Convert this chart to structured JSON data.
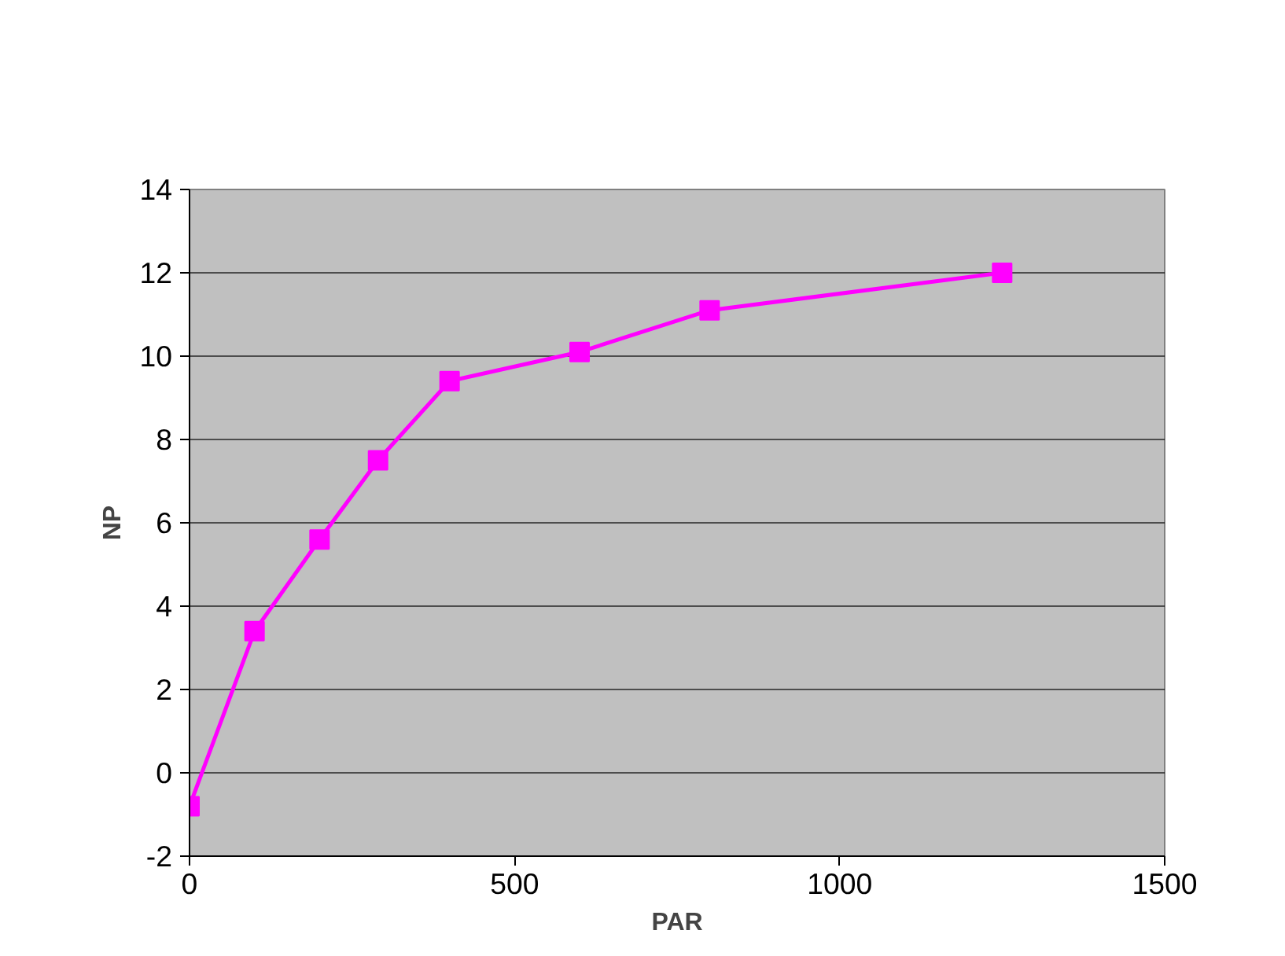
{
  "chart_data": {
    "type": "line",
    "xlabel": "PAR",
    "ylabel": "NP",
    "x": [
      0,
      100,
      200,
      290,
      400,
      600,
      800,
      1250
    ],
    "series": [
      {
        "color": "#ff00ff",
        "values": [
          -0.8,
          3.4,
          5.6,
          7.5,
          9.4,
          10.1,
          11.1,
          12.0
        ]
      }
    ],
    "xlim": [
      0,
      1500
    ],
    "xticks": [
      0,
      500,
      1000,
      1500
    ],
    "ylim": [
      -2,
      14
    ],
    "yticks": [
      -2,
      0,
      2,
      4,
      6,
      8,
      10,
      12,
      14
    ],
    "grid": "y",
    "marker": "square",
    "line_style": "solid"
  }
}
